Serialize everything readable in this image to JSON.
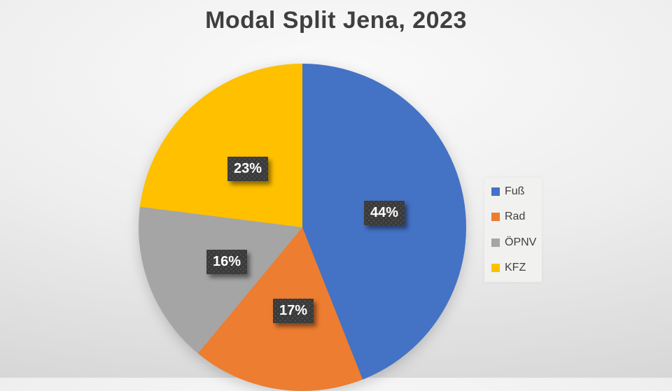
{
  "chart_data": {
    "type": "pie",
    "title": "Modal Split Jena, 2023",
    "legend_position": "right",
    "start_angle_deg": 0,
    "direction": "clockwise",
    "units": "%",
    "segments": [
      {
        "label": "Fuß",
        "value": 44,
        "display": "44%",
        "color": "#4472C4"
      },
      {
        "label": "Rad",
        "value": 17,
        "display": "17%",
        "color": "#ED7D31"
      },
      {
        "label": "ÖPNV",
        "value": 16,
        "display": "16%",
        "color": "#A5A5A5"
      },
      {
        "label": "KFZ",
        "value": 23,
        "display": "23%",
        "color": "#FFC000"
      }
    ],
    "label_style": {
      "box_color": "#3a3a3a",
      "text_color": "#ffffff"
    }
  }
}
